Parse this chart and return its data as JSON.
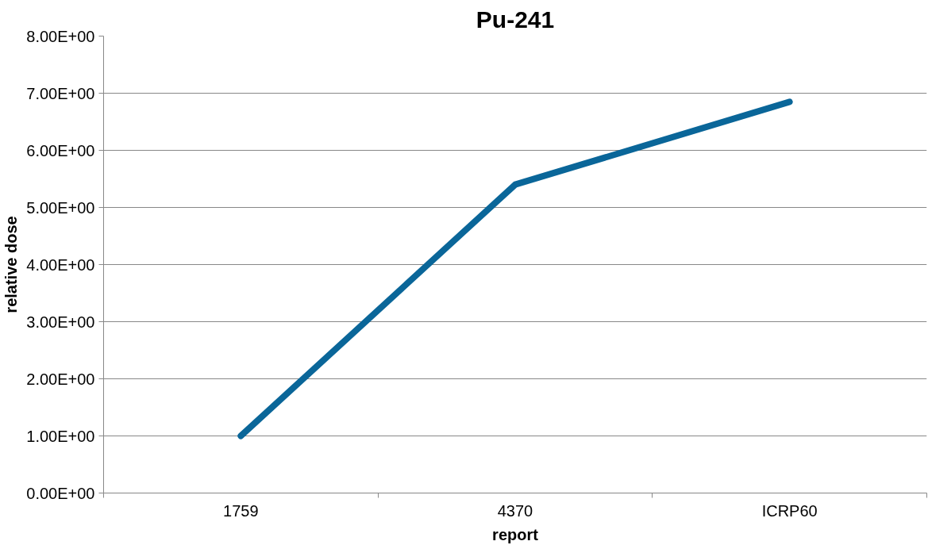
{
  "chart_data": {
    "type": "line",
    "title": "Pu-241",
    "xlabel": "report",
    "ylabel": "relative dose",
    "categories": [
      "1759",
      "4370",
      "ICRP60"
    ],
    "series": [
      {
        "color": "#0a6699",
        "values": [
          1.0,
          5.4,
          6.85
        ]
      }
    ],
    "ylim": [
      0,
      8
    ],
    "yticks": [
      {
        "value": 0,
        "label": "0.00E+00"
      },
      {
        "value": 1,
        "label": "1.00E+00"
      },
      {
        "value": 2,
        "label": "2.00E+00"
      },
      {
        "value": 3,
        "label": "3.00E+00"
      },
      {
        "value": 4,
        "label": "4.00E+00"
      },
      {
        "value": 5,
        "label": "5.00E+00"
      },
      {
        "value": 6,
        "label": "6.00E+00"
      },
      {
        "value": 7,
        "label": "7.00E+00"
      },
      {
        "value": 8,
        "label": "8.00E+00"
      }
    ],
    "grid": "y",
    "marker": "none",
    "line_style": "solid"
  }
}
